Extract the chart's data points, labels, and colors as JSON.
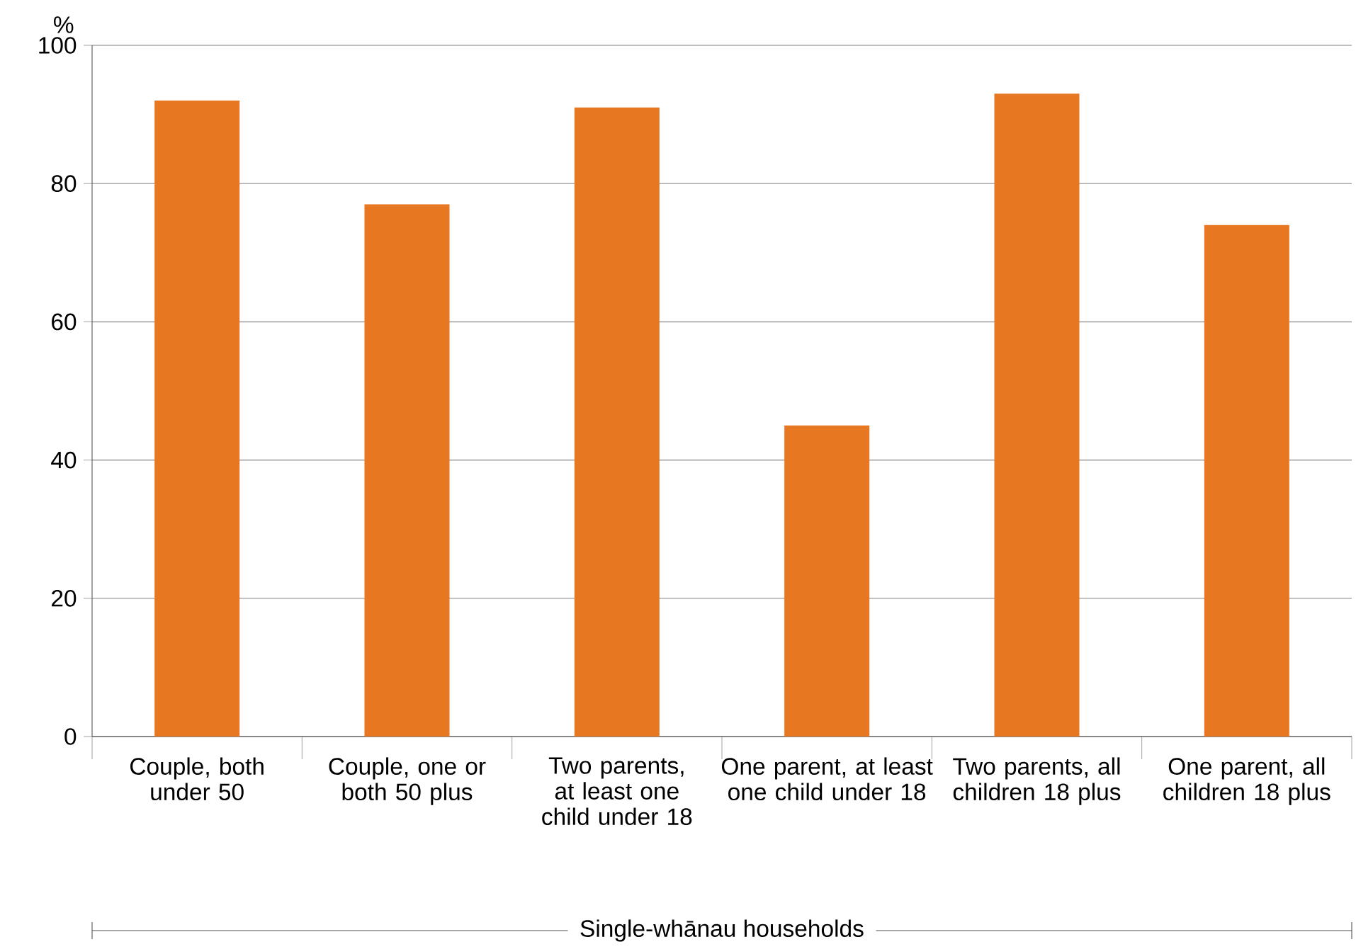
{
  "chart_data": {
    "type": "bar",
    "ylabel": "%",
    "xlabel": "Single-whānau households",
    "categories": [
      "Couple, both under 50",
      "Couple, one or both 50 plus",
      "Two parents, at least one child under 18",
      "One parent, at least one child under 18",
      "Two parents, all children 18 plus",
      "One parent, all children 18 plus"
    ],
    "values": [
      92,
      77,
      91,
      45,
      93,
      74
    ],
    "color": "#e87722",
    "ylim": [
      0,
      100
    ],
    "yticks": [
      0,
      20,
      40,
      60,
      80,
      100
    ],
    "grid": "y"
  }
}
